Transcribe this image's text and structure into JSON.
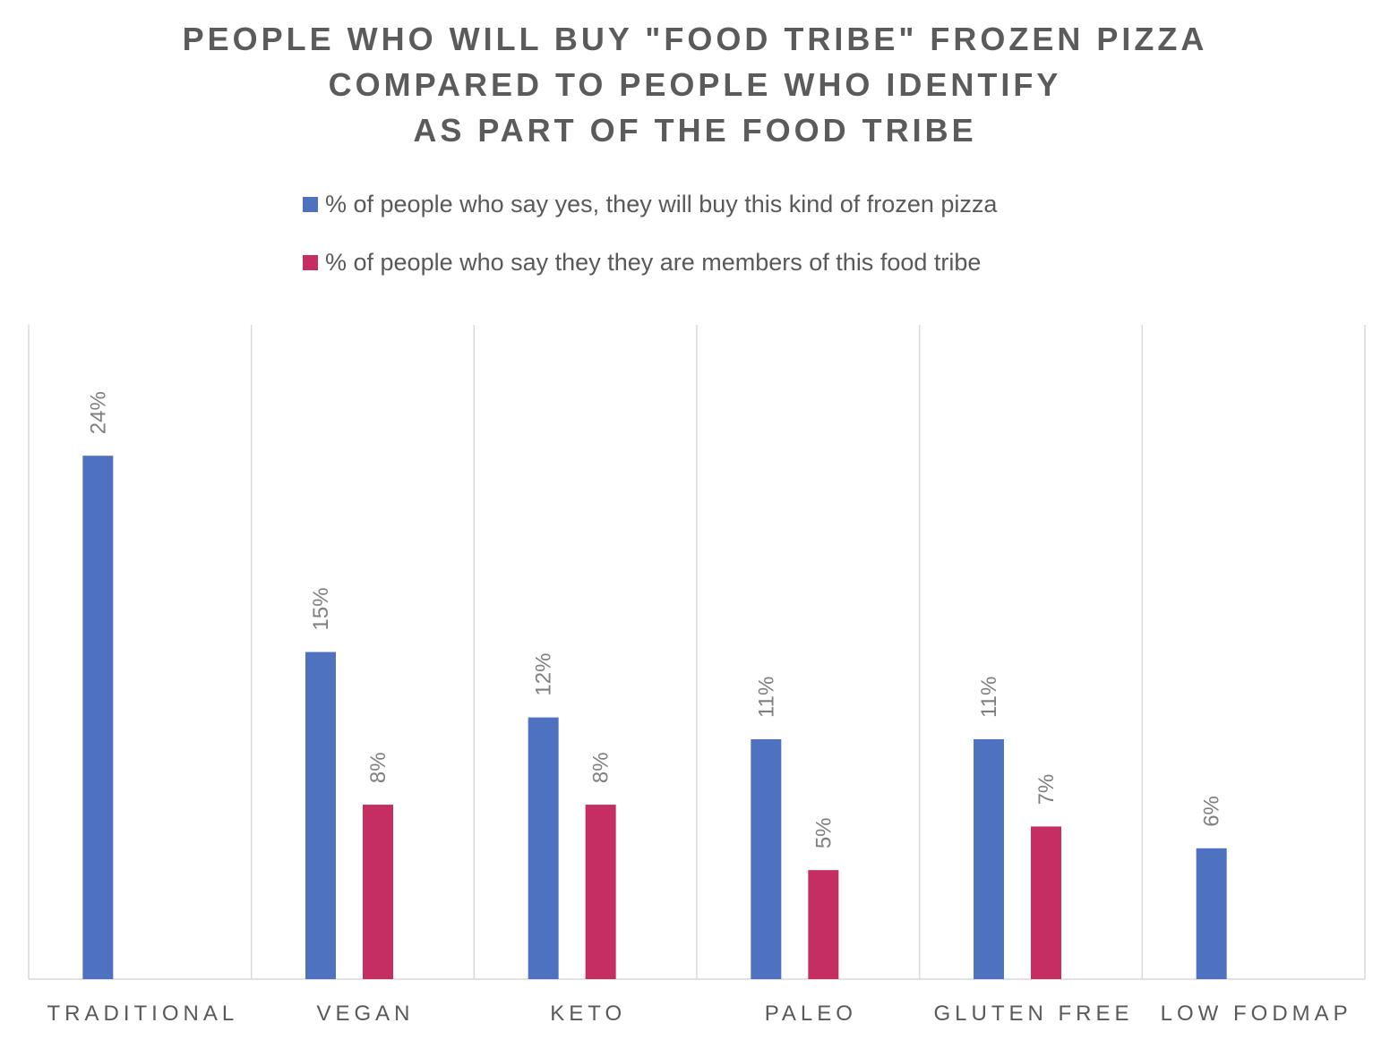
{
  "chart_data": {
    "type": "bar",
    "title_lines": [
      "PEOPLE WHO WILL BUY \"FOOD TRIBE\" FROZEN PIZZA",
      "COMPARED TO PEOPLE WHO IDENTIFY",
      "AS PART OF THE FOOD TRIBE"
    ],
    "categories": [
      "TRADITIONAL",
      "VEGAN",
      "KETO",
      "PALEO",
      "GLUTEN FREE",
      "LOW FODMAP"
    ],
    "series": [
      {
        "name": "% of people who say yes, they will buy this kind of frozen pizza",
        "color": "#4e72bf",
        "values": [
          24,
          15,
          12,
          11,
          11,
          6
        ],
        "labels": [
          "24%",
          "15%",
          "12%",
          "11%",
          "11%",
          "6%"
        ]
      },
      {
        "name": "% of people who say they they are members of this food tribe",
        "color": "#c42e63",
        "values": [
          null,
          8,
          8,
          5,
          7,
          null
        ],
        "labels": [
          null,
          "8%",
          "8%",
          "5%",
          "7%",
          null
        ]
      }
    ],
    "ylim": [
      0,
      30
    ],
    "grid": "vertical category separators",
    "legend_position": "top"
  }
}
